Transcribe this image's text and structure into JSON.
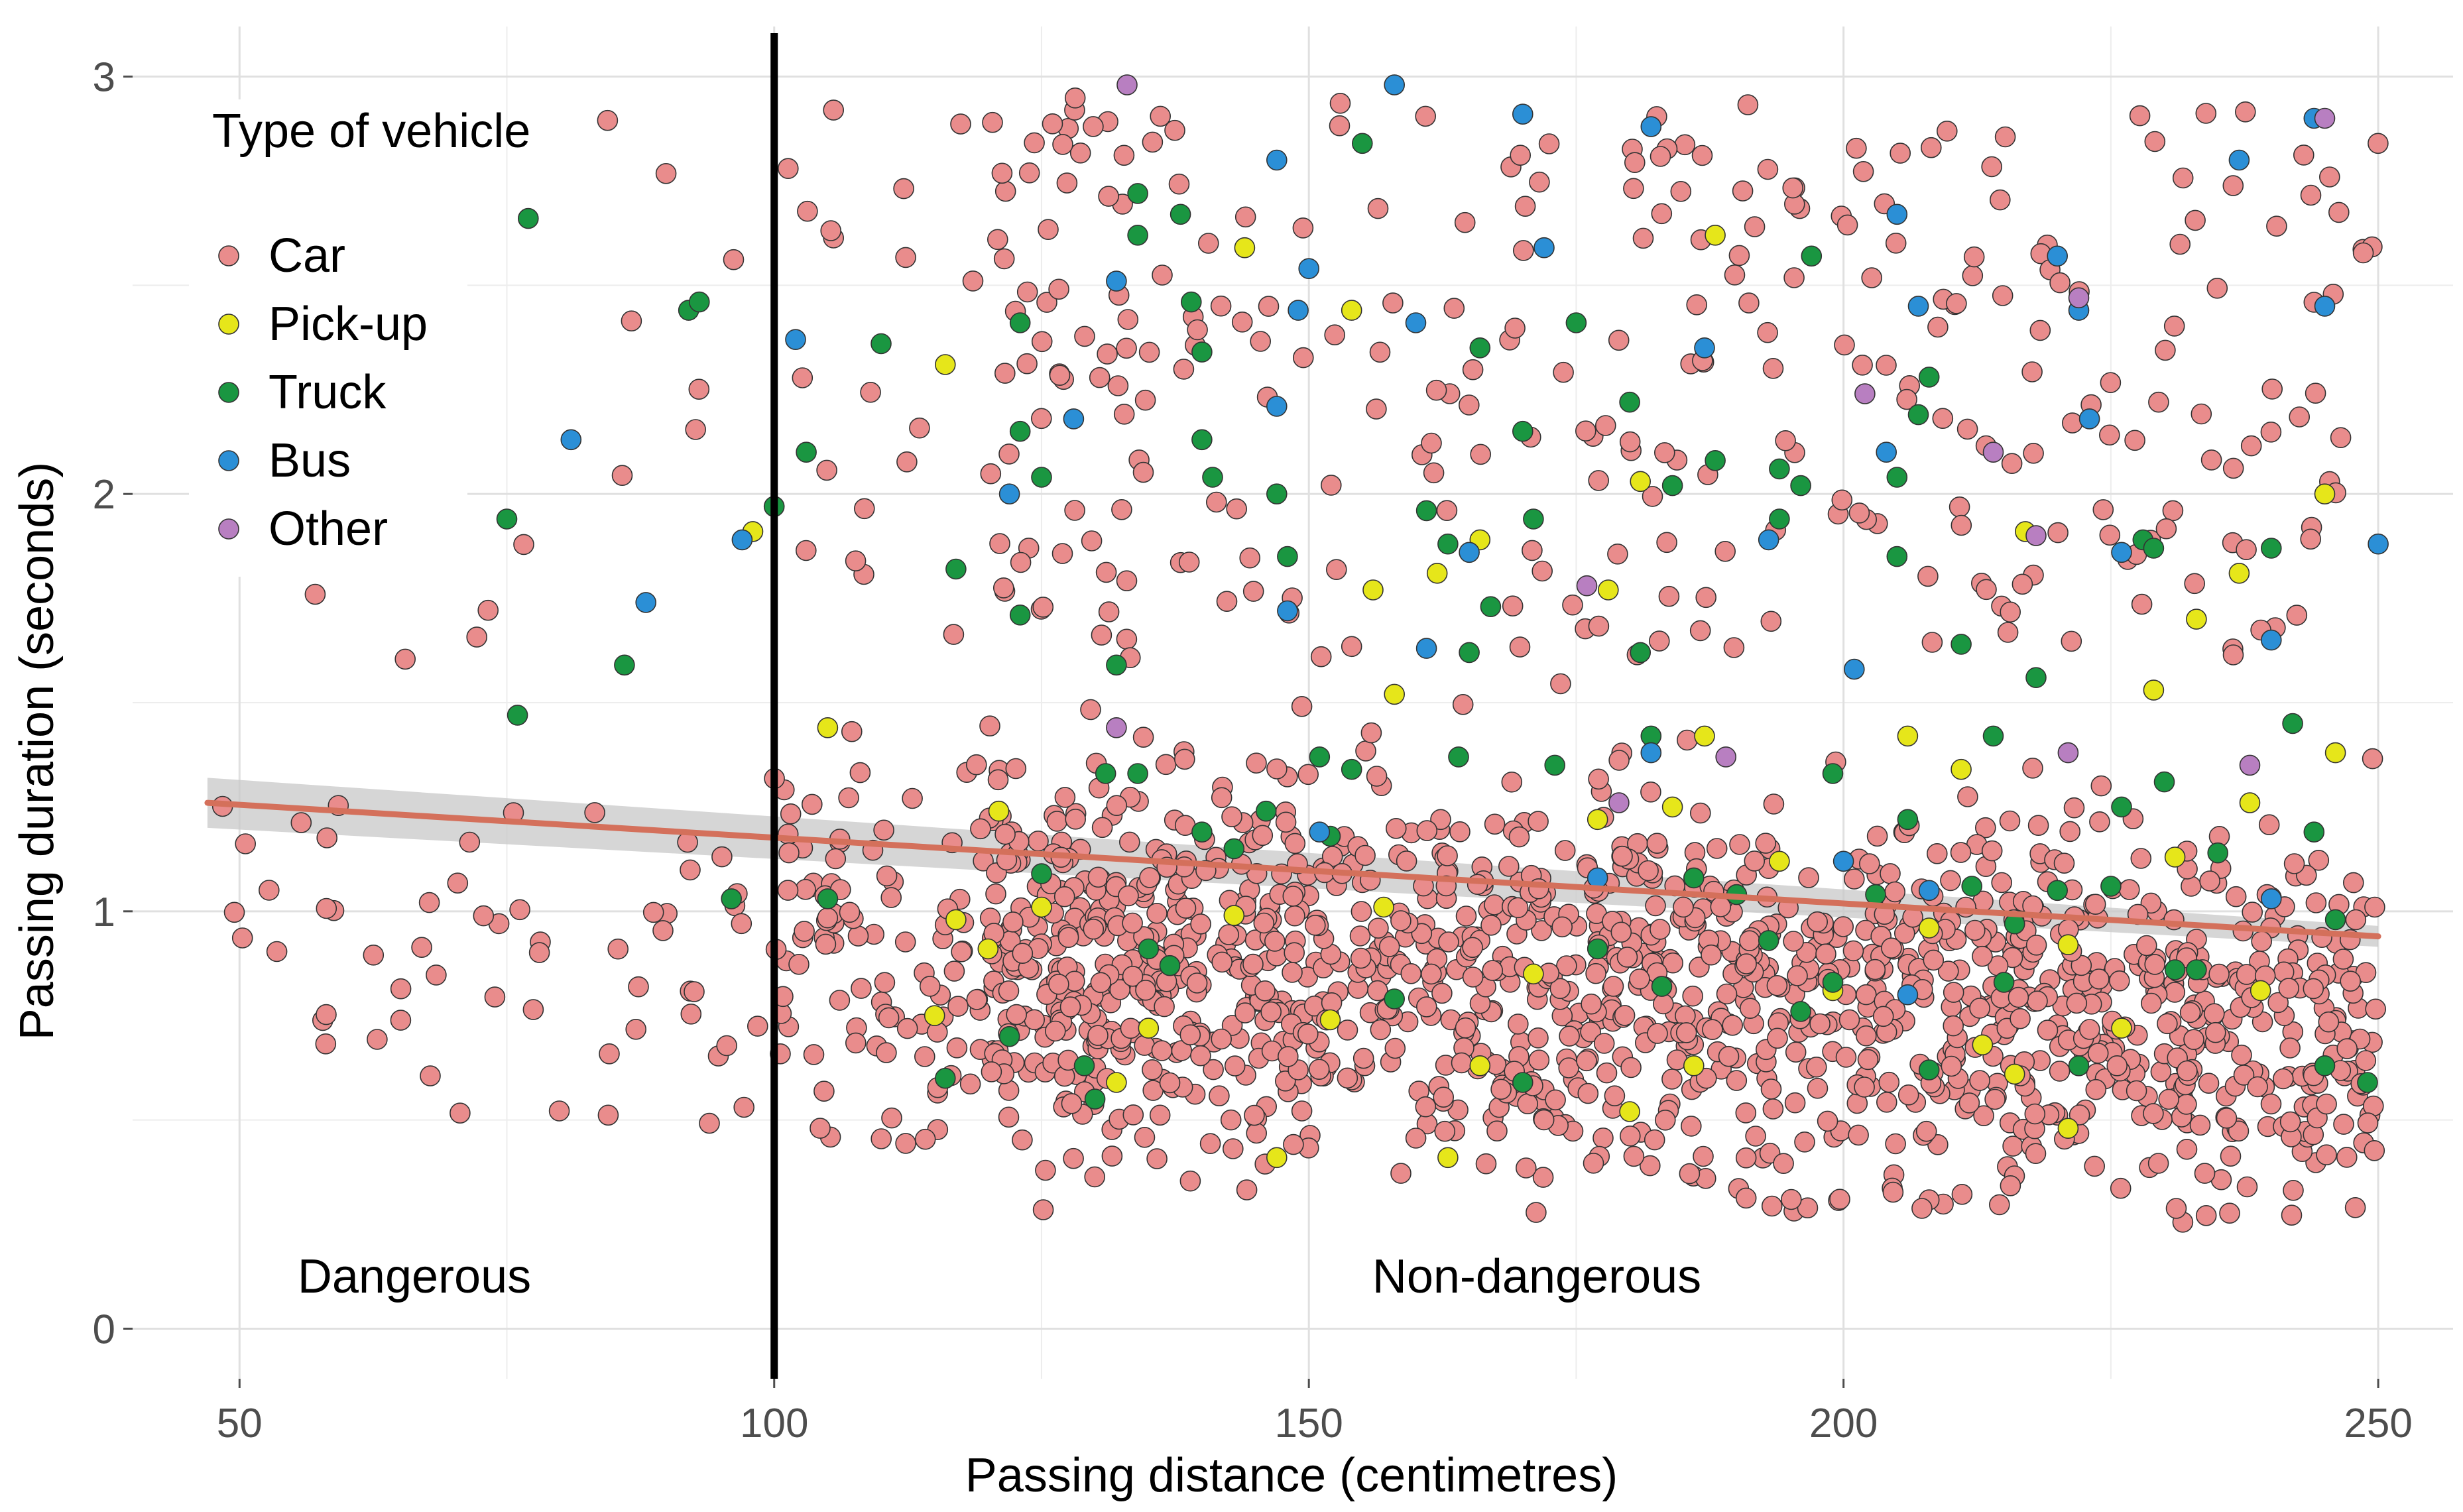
{
  "colors": {
    "Car": "#e98c8c",
    "Pick-up": "#e6e61a",
    "Truck": "#1a9641",
    "Bus": "#2b8fd6",
    "Other": "#b87fc1",
    "trend": "#d4705b",
    "ci_band": "#c8c8c8",
    "threshold": "#000000"
  },
  "chart_data": {
    "type": "scatter",
    "title": "",
    "xlabel": "Passing distance (centimetres)",
    "ylabel": "Passing duration (seconds)",
    "xlim": [
      40,
      257
    ],
    "ylim": [
      -0.12,
      3.12
    ],
    "x_ticks": [
      50,
      100,
      150,
      200,
      250
    ],
    "y_ticks": [
      0,
      1,
      2,
      3
    ],
    "x_tick_labels": [
      "50",
      "100",
      "150",
      "200",
      "250"
    ],
    "y_tick_labels": [
      "0",
      "1",
      "2",
      "3"
    ],
    "grid": true,
    "legend": {
      "title": "Type of vehicle",
      "position": "top-left",
      "entries": [
        "Car",
        "Pick-up",
        "Truck",
        "Bus",
        "Other"
      ]
    },
    "threshold": {
      "x": 100,
      "label_left": "Dangerous",
      "label_right": "Non-dangerous"
    },
    "trend_line": {
      "x": [
        47,
        250
      ],
      "y": [
        1.26,
        0.94
      ],
      "ci_halfwidth_start": 0.06,
      "ci_halfwidth_end": 0.025
    },
    "series": [
      {
        "name": "Pick-up",
        "points": [
          [
            98,
            1.91
          ],
          [
            105,
            1.44
          ],
          [
            116,
            2.31
          ],
          [
            121,
            1.24
          ],
          [
            144,
            2.59
          ],
          [
            154,
            2.44
          ],
          [
            156,
            1.77
          ],
          [
            162,
            1.81
          ],
          [
            166,
            1.89
          ],
          [
            178,
            1.77
          ],
          [
            181,
            2.03
          ],
          [
            187,
            1.42
          ],
          [
            188,
            2.62
          ],
          [
            211,
            1.34
          ],
          [
            217,
            1.91
          ],
          [
            229,
            1.53
          ],
          [
            233,
            1.7
          ],
          [
            237,
            1.81
          ],
          [
            245,
            2.0
          ],
          [
            246,
            1.38
          ],
          [
            117,
            0.98
          ],
          [
            125,
            1.01
          ],
          [
            143,
            0.99
          ],
          [
            158,
            1.52
          ],
          [
            163,
            0.41
          ],
          [
            171,
            0.85
          ],
          [
            180,
            0.52
          ],
          [
            186,
            0.63
          ],
          [
            199,
            0.81
          ],
          [
            208,
            0.96
          ],
          [
            213,
            0.68
          ],
          [
            216,
            0.61
          ],
          [
            221,
            0.48
          ],
          [
            226,
            0.72
          ],
          [
            239,
            0.81
          ],
          [
            132,
            0.59
          ],
          [
            115,
            0.75
          ],
          [
            147,
            0.41
          ],
          [
            177,
            1.22
          ],
          [
            206,
            1.42
          ],
          [
            231,
            1.13
          ],
          [
            194,
            1.12
          ],
          [
            157,
            1.01
          ],
          [
            135,
            0.72
          ],
          [
            184,
            1.25
          ],
          [
            221,
            0.92
          ],
          [
            166,
            0.63
          ],
          [
            120,
            0.91
          ],
          [
            152,
            0.74
          ],
          [
            238,
            1.26
          ]
        ]
      },
      {
        "name": "Truck",
        "points": [
          [
            77,
            2.66
          ],
          [
            75,
            1.94
          ],
          [
            76,
            1.47
          ],
          [
            86,
            1.59
          ],
          [
            92,
            2.44
          ],
          [
            93,
            2.46
          ],
          [
            96,
            1.03
          ],
          [
            100,
            1.97
          ],
          [
            103,
            2.1
          ],
          [
            105,
            1.03
          ],
          [
            110,
            2.36
          ],
          [
            116,
            0.6
          ],
          [
            117,
            1.82
          ],
          [
            122,
            0.7
          ],
          [
            123,
            2.15
          ],
          [
            123,
            2.41
          ],
          [
            123,
            1.71
          ],
          [
            125,
            2.04
          ],
          [
            125,
            1.09
          ],
          [
            129,
            0.63
          ],
          [
            130,
            0.55
          ],
          [
            131,
            1.33
          ],
          [
            132,
            1.59
          ],
          [
            134,
            2.72
          ],
          [
            134,
            2.62
          ],
          [
            134,
            1.33
          ],
          [
            135,
            0.91
          ],
          [
            137,
            0.87
          ],
          [
            138,
            2.67
          ],
          [
            139,
            2.46
          ],
          [
            140,
            2.34
          ],
          [
            140,
            2.13
          ],
          [
            140,
            1.19
          ],
          [
            141,
            2.04
          ],
          [
            143,
            1.15
          ],
          [
            146,
            1.24
          ],
          [
            147,
            2.0
          ],
          [
            148,
            1.85
          ],
          [
            151,
            1.37
          ],
          [
            152,
            1.18
          ],
          [
            154,
            1.34
          ],
          [
            155,
            2.84
          ],
          [
            161,
            1.96
          ],
          [
            163,
            1.88
          ],
          [
            164,
            1.37
          ],
          [
            165,
            1.62
          ],
          [
            166,
            2.35
          ],
          [
            167,
            1.73
          ],
          [
            170,
            2.15
          ],
          [
            171,
            1.94
          ],
          [
            173,
            1.35
          ],
          [
            175,
            2.41
          ],
          [
            177,
            0.91
          ],
          [
            180,
            2.22
          ],
          [
            181,
            1.62
          ],
          [
            182,
            1.42
          ],
          [
            183,
            0.82
          ],
          [
            184,
            2.02
          ],
          [
            186,
            1.08
          ],
          [
            188,
            2.08
          ],
          [
            190,
            1.04
          ],
          [
            193,
            0.93
          ],
          [
            194,
            2.06
          ],
          [
            194,
            1.94
          ],
          [
            196,
            2.02
          ],
          [
            197,
            2.57
          ],
          [
            199,
            1.33
          ],
          [
            199,
            0.83
          ],
          [
            203,
            1.04
          ],
          [
            205,
            1.85
          ],
          [
            205,
            2.04
          ],
          [
            206,
            1.22
          ],
          [
            207,
            2.19
          ],
          [
            208,
            0.62
          ],
          [
            211,
            1.64
          ],
          [
            212,
            1.06
          ],
          [
            214,
            1.42
          ],
          [
            215,
            0.83
          ],
          [
            216,
            0.97
          ],
          [
            218,
            1.56
          ],
          [
            220,
            1.05
          ],
          [
            222,
            0.63
          ],
          [
            225,
            1.06
          ],
          [
            226,
            1.25
          ],
          [
            228,
            1.89
          ],
          [
            229,
            1.87
          ],
          [
            230,
            1.31
          ],
          [
            231,
            0.86
          ],
          [
            233,
            0.86
          ],
          [
            235,
            1.14
          ],
          [
            240,
            1.87
          ],
          [
            242,
            1.45
          ],
          [
            244,
            1.19
          ],
          [
            245,
            0.63
          ],
          [
            246,
            0.98
          ],
          [
            249,
            0.59
          ],
          [
            208,
            2.28
          ],
          [
            196,
            0.76
          ],
          [
            170,
            0.59
          ],
          [
            158,
            0.79
          ]
        ]
      },
      {
        "name": "Bus",
        "points": [
          [
            81,
            2.13
          ],
          [
            88,
            1.74
          ],
          [
            97,
            1.89
          ],
          [
            102,
            2.37
          ],
          [
            122,
            2.0
          ],
          [
            128,
            2.18
          ],
          [
            132,
            2.51
          ],
          [
            147,
            2.8
          ],
          [
            147,
            2.21
          ],
          [
            148,
            1.72
          ],
          [
            149,
            2.44
          ],
          [
            150,
            2.54
          ],
          [
            151,
            1.19
          ],
          [
            158,
            2.98
          ],
          [
            160,
            2.41
          ],
          [
            161,
            1.63
          ],
          [
            165,
            1.86
          ],
          [
            170,
            2.91
          ],
          [
            172,
            2.59
          ],
          [
            177,
            1.08
          ],
          [
            182,
            2.88
          ],
          [
            182,
            1.38
          ],
          [
            187,
            2.35
          ],
          [
            193,
            1.89
          ],
          [
            200,
            1.12
          ],
          [
            201,
            1.58
          ],
          [
            204,
            2.1
          ],
          [
            205,
            2.67
          ],
          [
            206,
            0.8
          ],
          [
            207,
            2.45
          ],
          [
            208,
            1.05
          ],
          [
            220,
            2.57
          ],
          [
            222,
            2.44
          ],
          [
            223,
            2.18
          ],
          [
            226,
            1.86
          ],
          [
            237,
            2.8
          ],
          [
            240,
            1.65
          ],
          [
            240,
            1.03
          ],
          [
            244,
            2.9
          ],
          [
            245,
            2.45
          ],
          [
            250,
            1.88
          ]
        ]
      },
      {
        "name": "Other",
        "points": [
          [
            133,
            2.98
          ],
          [
            132,
            1.44
          ],
          [
            176,
            1.78
          ],
          [
            179,
            1.26
          ],
          [
            189,
            1.37
          ],
          [
            202,
            2.24
          ],
          [
            214,
            2.1
          ],
          [
            218,
            1.9
          ],
          [
            221,
            1.38
          ],
          [
            222,
            2.47
          ],
          [
            238,
            1.35
          ],
          [
            245,
            2.9
          ]
        ]
      }
    ],
    "car_points_rendered": "procedural: about 1900 pink Car points filling the plot, densest between 120 and 250 cm and 0.3 to 1.7 s"
  },
  "car_cloud": {
    "count": 1900,
    "seed": 24681,
    "dense_x_range": [
      120,
      250
    ],
    "y_range": [
      0.25,
      3.0
    ]
  }
}
